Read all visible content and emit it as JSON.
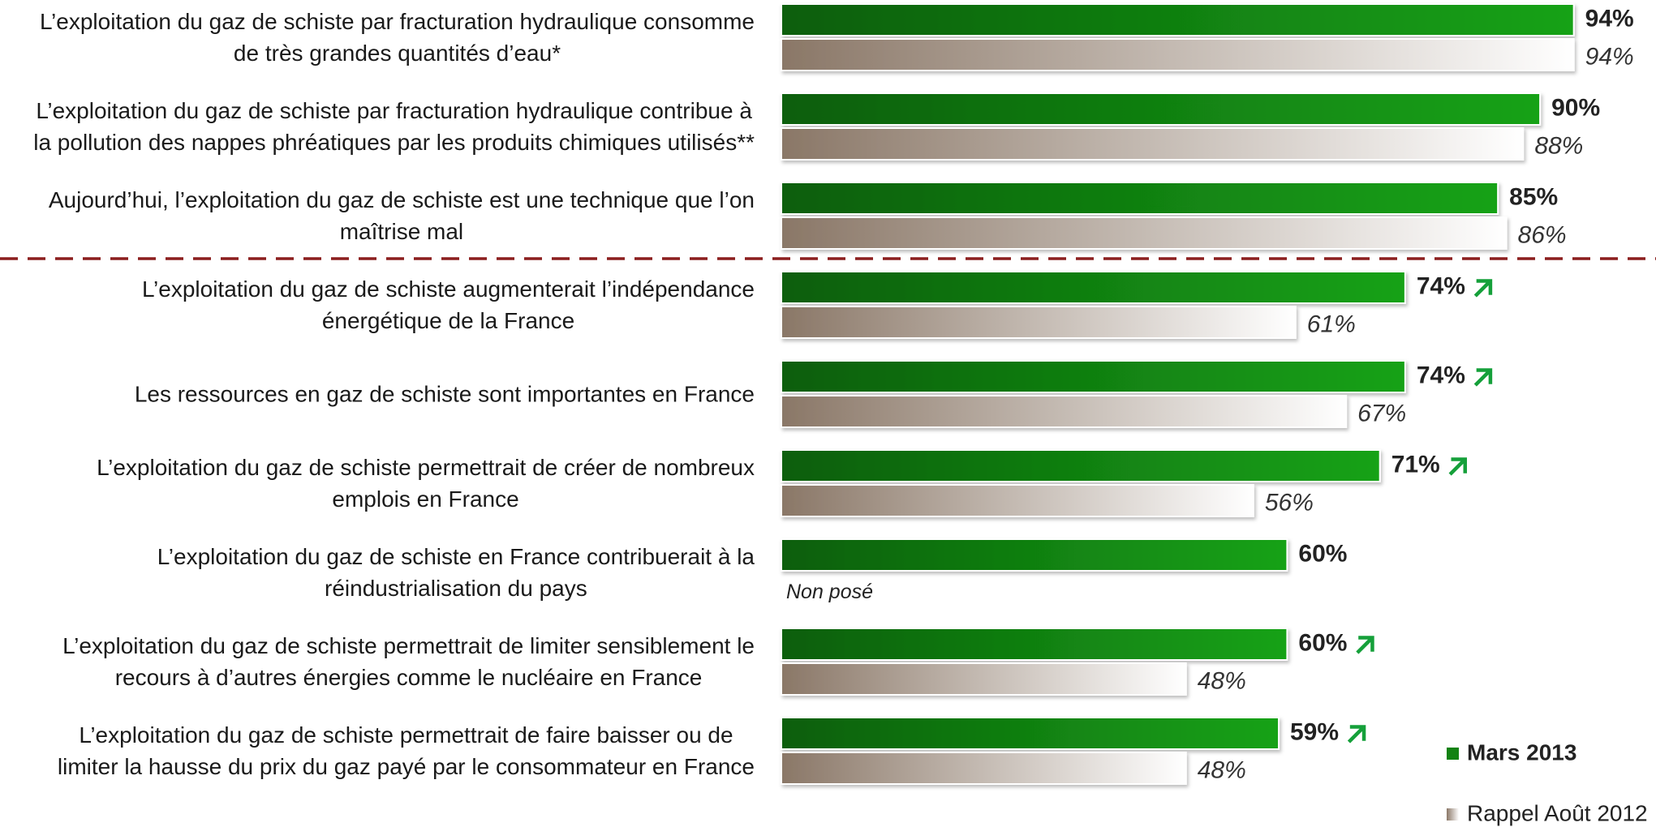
{
  "chart_data": {
    "type": "grouped-hbar",
    "categories": [
      [
        "L’exploitation du gaz de schiste par fracturation hydraulique consomme",
        "de très grandes quantités d’eau*"
      ],
      [
        "L’exploitation du gaz de schiste par fracturation hydraulique contribue à",
        "la pollution des nappes phréatiques par les produits chimiques utilisés**"
      ],
      [
        "Aujourd’hui, l’exploitation du gaz de schiste est une technique que l’on",
        "maîtrise mal"
      ],
      [
        "L’exploitation du gaz de schiste augmenterait l’indépendance",
        "énergétique de la France"
      ],
      [
        "Les ressources en gaz de schiste sont importantes en France"
      ],
      [
        "L’exploitation du gaz de schiste permettrait de créer de nombreux",
        "emplois en France"
      ],
      [
        "L’exploitation du gaz de schiste en France contribuerait à la",
        "réindustrialisation du pays"
      ],
      [
        "L’exploitation du gaz de schiste permettrait de limiter sensiblement le",
        "recours à d’autres énergies comme le nucléaire en France"
      ],
      [
        "L’exploitation du gaz de schiste permettrait de faire baisser ou de",
        "limiter la hausse du prix du gaz payé par le consommateur en France"
      ]
    ],
    "series": [
      {
        "name": "Mars 2013",
        "color": "#128212",
        "gradient": [
          "#0b5e0b",
          "#17a217"
        ],
        "values": [
          94,
          90,
          85,
          74,
          74,
          71,
          60,
          60,
          59
        ],
        "value_labels": [
          "94%",
          "90%",
          "85%",
          "74%",
          "74%",
          "71%",
          "60%",
          "60%",
          "59%"
        ]
      },
      {
        "name": "Rappel Août 2012",
        "color": "#a89686",
        "gradient": [
          "#8a7767",
          "#ffffff"
        ],
        "values": [
          94,
          88,
          86,
          61,
          67,
          56,
          null,
          48,
          48
        ],
        "value_labels": [
          "94%",
          "88%",
          "86%",
          "61%",
          "67%",
          "56%",
          null,
          "48%",
          "48%"
        ]
      }
    ],
    "na_label": "Non posé",
    "increase_markers": [
      3,
      4,
      5,
      7,
      8
    ],
    "separator_after": 2,
    "xlim": [
      0,
      100
    ],
    "legend": "bottom-right"
  }
}
